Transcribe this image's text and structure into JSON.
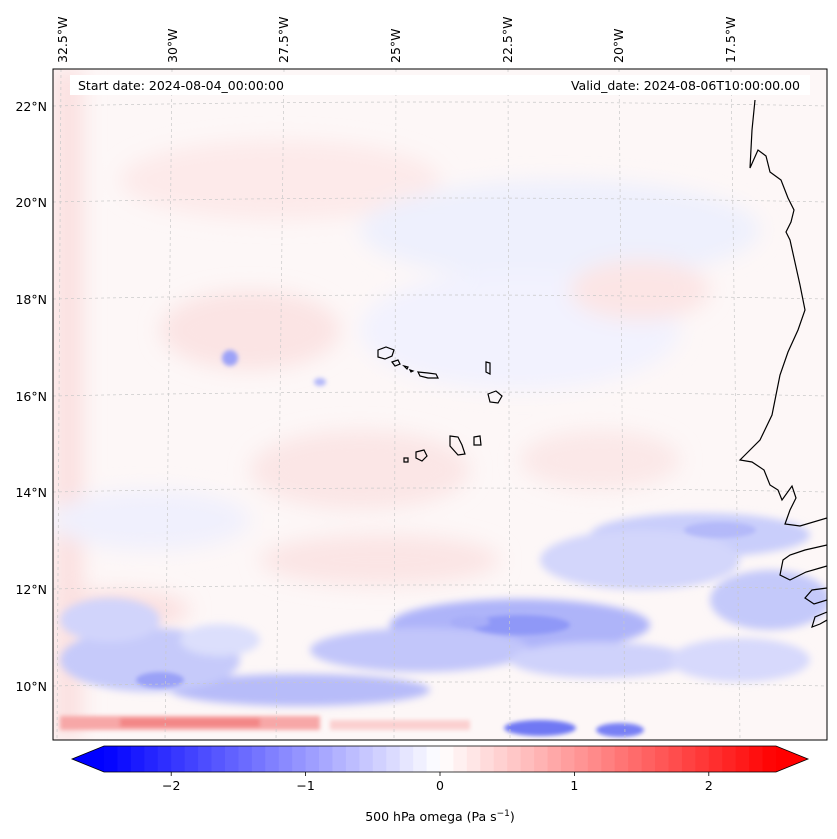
{
  "map": {
    "header_left": "Start date: 2024-08-04_00:00:00",
    "header_right": "Valid_date: 2024-08-06T10:00:00.00",
    "lon_labels": [
      "32.5°W",
      "30°W",
      "27.5°W",
      "25°W",
      "22.5°W",
      "20°W",
      "17.5°W"
    ],
    "lat_labels": [
      "22°N",
      "20°N",
      "18°N",
      "16°N",
      "14°N",
      "12°N",
      "10°N"
    ]
  },
  "colorbar": {
    "tick_labels": [
      "−2",
      "−1",
      "0",
      "1",
      "2"
    ],
    "tick_values": [
      -2,
      -1,
      0,
      1,
      2
    ],
    "range": [
      -2.5,
      2.5
    ],
    "label_main": "500 hPa omega (Pa s",
    "label_sup": "−1",
    "label_end": ")",
    "colormap": "bwr",
    "color_min": "#0000ff",
    "color_mid": "#ffffff",
    "color_max": "#ff0000"
  },
  "colors": {
    "coastline": "#000000",
    "gridline": "#c8c8c8"
  }
}
